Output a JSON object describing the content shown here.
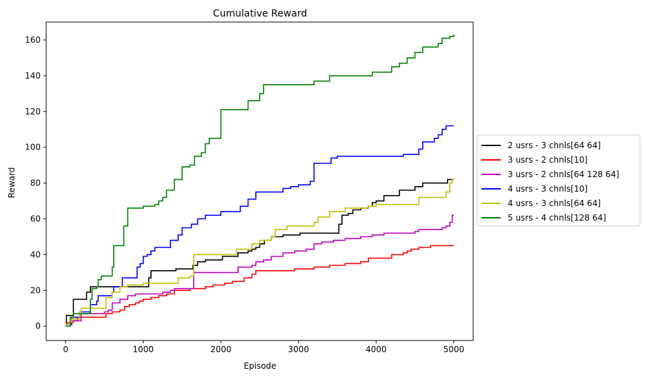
{
  "chart_data": {
    "type": "line",
    "title": "Cumulative Reward",
    "xlabel": "Episode",
    "ylabel": "Reward",
    "xlim": [
      -250,
      5250
    ],
    "ylim": [
      -8,
      170
    ],
    "xticks": [
      0,
      1000,
      2000,
      3000,
      4000,
      5000
    ],
    "yticks": [
      0,
      20,
      40,
      60,
      80,
      100,
      120,
      140,
      160
    ],
    "legend_position": "outside-right",
    "step": true,
    "series": [
      {
        "name": "2 usrs - 3 chnls[64 64]",
        "color": "#000000",
        "points": [
          [
            0,
            1
          ],
          [
            10,
            6
          ],
          [
            60,
            6
          ],
          [
            100,
            15
          ],
          [
            250,
            15
          ],
          [
            270,
            19
          ],
          [
            300,
            19
          ],
          [
            320,
            22
          ],
          [
            600,
            22
          ],
          [
            700,
            22
          ],
          [
            1050,
            22
          ],
          [
            1070,
            27
          ],
          [
            1100,
            31
          ],
          [
            1400,
            31
          ],
          [
            1420,
            32
          ],
          [
            1600,
            32
          ],
          [
            1640,
            34
          ],
          [
            1700,
            36
          ],
          [
            1800,
            37
          ],
          [
            2000,
            37
          ],
          [
            2020,
            39
          ],
          [
            2200,
            39
          ],
          [
            2220,
            41
          ],
          [
            2350,
            42
          ],
          [
            2400,
            43
          ],
          [
            2450,
            44
          ],
          [
            2500,
            46
          ],
          [
            2560,
            48
          ],
          [
            2650,
            50
          ],
          [
            2800,
            51
          ],
          [
            3000,
            51
          ],
          [
            3020,
            52
          ],
          [
            3500,
            52
          ],
          [
            3520,
            57
          ],
          [
            3560,
            62
          ],
          [
            3640,
            63
          ],
          [
            3700,
            65
          ],
          [
            3800,
            66
          ],
          [
            3900,
            67
          ],
          [
            3950,
            69
          ],
          [
            4000,
            70
          ],
          [
            4100,
            73
          ],
          [
            4300,
            76
          ],
          [
            4500,
            78
          ],
          [
            4600,
            80
          ],
          [
            4700,
            80
          ],
          [
            4880,
            80
          ],
          [
            4920,
            82
          ],
          [
            5000,
            82
          ]
        ]
      },
      {
        "name": "3 usrs - 2 chnls[10]",
        "color": "#ff0000",
        "points": [
          [
            0,
            2
          ],
          [
            80,
            2
          ],
          [
            100,
            3
          ],
          [
            150,
            5
          ],
          [
            500,
            5
          ],
          [
            520,
            7
          ],
          [
            600,
            8
          ],
          [
            700,
            9
          ],
          [
            760,
            11
          ],
          [
            820,
            12
          ],
          [
            900,
            13
          ],
          [
            950,
            14
          ],
          [
            1000,
            15
          ],
          [
            1100,
            16
          ],
          [
            1200,
            17
          ],
          [
            1300,
            18
          ],
          [
            1400,
            20
          ],
          [
            1600,
            21
          ],
          [
            1800,
            22
          ],
          [
            1900,
            23
          ],
          [
            2050,
            24
          ],
          [
            2150,
            25
          ],
          [
            2300,
            27
          ],
          [
            2400,
            29
          ],
          [
            2450,
            31
          ],
          [
            2600,
            31
          ],
          [
            2800,
            31
          ],
          [
            2950,
            32
          ],
          [
            3100,
            32
          ],
          [
            3200,
            33
          ],
          [
            3400,
            34
          ],
          [
            3600,
            35
          ],
          [
            3800,
            36
          ],
          [
            3900,
            38
          ],
          [
            4100,
            38
          ],
          [
            4200,
            40
          ],
          [
            4350,
            41
          ],
          [
            4400,
            42
          ],
          [
            4450,
            43
          ],
          [
            4550,
            44
          ],
          [
            4700,
            45
          ],
          [
            5000,
            45
          ]
        ]
      },
      {
        "name": "3 usrs - 2 chnls[64 128 64]",
        "color": "#bf00bf",
        "points": [
          [
            0,
            1
          ],
          [
            80,
            3
          ],
          [
            200,
            7
          ],
          [
            300,
            7
          ],
          [
            500,
            8
          ],
          [
            550,
            9
          ],
          [
            600,
            13
          ],
          [
            700,
            15
          ],
          [
            800,
            17
          ],
          [
            900,
            18
          ],
          [
            1000,
            18
          ],
          [
            1150,
            18
          ],
          [
            1250,
            19
          ],
          [
            1350,
            20
          ],
          [
            1400,
            21
          ],
          [
            1600,
            21
          ],
          [
            1650,
            30
          ],
          [
            1800,
            30
          ],
          [
            2200,
            30
          ],
          [
            2220,
            33
          ],
          [
            2400,
            34
          ],
          [
            2450,
            36
          ],
          [
            2550,
            37
          ],
          [
            2650,
            39
          ],
          [
            2800,
            41
          ],
          [
            2950,
            42
          ],
          [
            3100,
            43
          ],
          [
            3200,
            46
          ],
          [
            3300,
            47
          ],
          [
            3450,
            48
          ],
          [
            3600,
            49
          ],
          [
            3800,
            50
          ],
          [
            3950,
            51
          ],
          [
            4100,
            52
          ],
          [
            4300,
            52
          ],
          [
            4500,
            53
          ],
          [
            4550,
            54
          ],
          [
            4700,
            54
          ],
          [
            4850,
            55
          ],
          [
            4900,
            56
          ],
          [
            4950,
            58
          ],
          [
            4980,
            62
          ],
          [
            5000,
            62
          ]
        ]
      },
      {
        "name": "4 usrs - 3 chnls[10]",
        "color": "#0000ff",
        "points": [
          [
            0,
            1
          ],
          [
            80,
            5
          ],
          [
            180,
            8
          ],
          [
            300,
            8
          ],
          [
            320,
            12
          ],
          [
            400,
            14
          ],
          [
            420,
            17
          ],
          [
            600,
            19
          ],
          [
            620,
            22
          ],
          [
            700,
            22
          ],
          [
            730,
            27
          ],
          [
            900,
            27
          ],
          [
            920,
            33
          ],
          [
            960,
            35
          ],
          [
            1000,
            39
          ],
          [
            1050,
            40
          ],
          [
            1100,
            42
          ],
          [
            1150,
            44
          ],
          [
            1350,
            48
          ],
          [
            1450,
            51
          ],
          [
            1500,
            55
          ],
          [
            1620,
            57
          ],
          [
            1700,
            60
          ],
          [
            1800,
            62
          ],
          [
            2000,
            64
          ],
          [
            2250,
            67
          ],
          [
            2350,
            71
          ],
          [
            2450,
            75
          ],
          [
            2600,
            75
          ],
          [
            2800,
            77
          ],
          [
            2900,
            78
          ],
          [
            3000,
            79
          ],
          [
            3150,
            81
          ],
          [
            3200,
            91
          ],
          [
            3400,
            91
          ],
          [
            3420,
            94
          ],
          [
            3500,
            95
          ],
          [
            3600,
            95
          ],
          [
            3900,
            95
          ],
          [
            4300,
            95
          ],
          [
            4350,
            96
          ],
          [
            4550,
            99
          ],
          [
            4600,
            103
          ],
          [
            4750,
            105
          ],
          [
            4800,
            107
          ],
          [
            4850,
            110
          ],
          [
            4900,
            112
          ],
          [
            5000,
            112
          ]
        ]
      },
      {
        "name": "4 usrs - 3 chnls[64 64]",
        "color": "#bfbf00",
        "points": [
          [
            0,
            1
          ],
          [
            60,
            2
          ],
          [
            80,
            4
          ],
          [
            180,
            8
          ],
          [
            200,
            10
          ],
          [
            300,
            10
          ],
          [
            500,
            10
          ],
          [
            520,
            16
          ],
          [
            600,
            19
          ],
          [
            700,
            22
          ],
          [
            800,
            23
          ],
          [
            900,
            23
          ],
          [
            1000,
            24
          ],
          [
            1350,
            24
          ],
          [
            1450,
            27
          ],
          [
            1600,
            28
          ],
          [
            1650,
            40
          ],
          [
            2000,
            40
          ],
          [
            2200,
            43
          ],
          [
            2400,
            46
          ],
          [
            2500,
            48
          ],
          [
            2650,
            50
          ],
          [
            2700,
            54
          ],
          [
            2850,
            56
          ],
          [
            3200,
            58
          ],
          [
            3250,
            61
          ],
          [
            3400,
            64
          ],
          [
            3600,
            66
          ],
          [
            3700,
            66
          ],
          [
            3900,
            67
          ],
          [
            4000,
            68
          ],
          [
            4300,
            68
          ],
          [
            4550,
            72
          ],
          [
            4600,
            72
          ],
          [
            4700,
            72
          ],
          [
            4900,
            75
          ],
          [
            4950,
            80
          ],
          [
            4980,
            82
          ],
          [
            5000,
            82
          ]
        ]
      },
      {
        "name": "5 usrs - 4 chnls[128 64]",
        "color": "#008000",
        "points": [
          [
            0,
            0
          ],
          [
            60,
            5
          ],
          [
            100,
            7
          ],
          [
            300,
            7
          ],
          [
            320,
            15
          ],
          [
            340,
            21
          ],
          [
            400,
            22
          ],
          [
            420,
            26
          ],
          [
            460,
            28
          ],
          [
            600,
            33
          ],
          [
            620,
            45
          ],
          [
            720,
            45
          ],
          [
            750,
            56
          ],
          [
            800,
            66
          ],
          [
            1000,
            67
          ],
          [
            1150,
            68
          ],
          [
            1200,
            70
          ],
          [
            1250,
            72
          ],
          [
            1300,
            76
          ],
          [
            1400,
            82
          ],
          [
            1500,
            89
          ],
          [
            1600,
            90
          ],
          [
            1660,
            95
          ],
          [
            1750,
            97
          ],
          [
            1800,
            102
          ],
          [
            1850,
            105
          ],
          [
            1950,
            105
          ],
          [
            2000,
            121
          ],
          [
            2300,
            121
          ],
          [
            2350,
            126
          ],
          [
            2500,
            130
          ],
          [
            2550,
            135
          ],
          [
            2800,
            135
          ],
          [
            3000,
            135
          ],
          [
            3200,
            137
          ],
          [
            3400,
            140
          ],
          [
            3900,
            140
          ],
          [
            3950,
            142
          ],
          [
            4100,
            142
          ],
          [
            4200,
            145
          ],
          [
            4300,
            147
          ],
          [
            4400,
            150
          ],
          [
            4500,
            153
          ],
          [
            4600,
            156
          ],
          [
            4700,
            156
          ],
          [
            4800,
            158
          ],
          [
            4850,
            161
          ],
          [
            4900,
            161
          ],
          [
            4950,
            162
          ],
          [
            5000,
            163
          ]
        ]
      }
    ]
  }
}
